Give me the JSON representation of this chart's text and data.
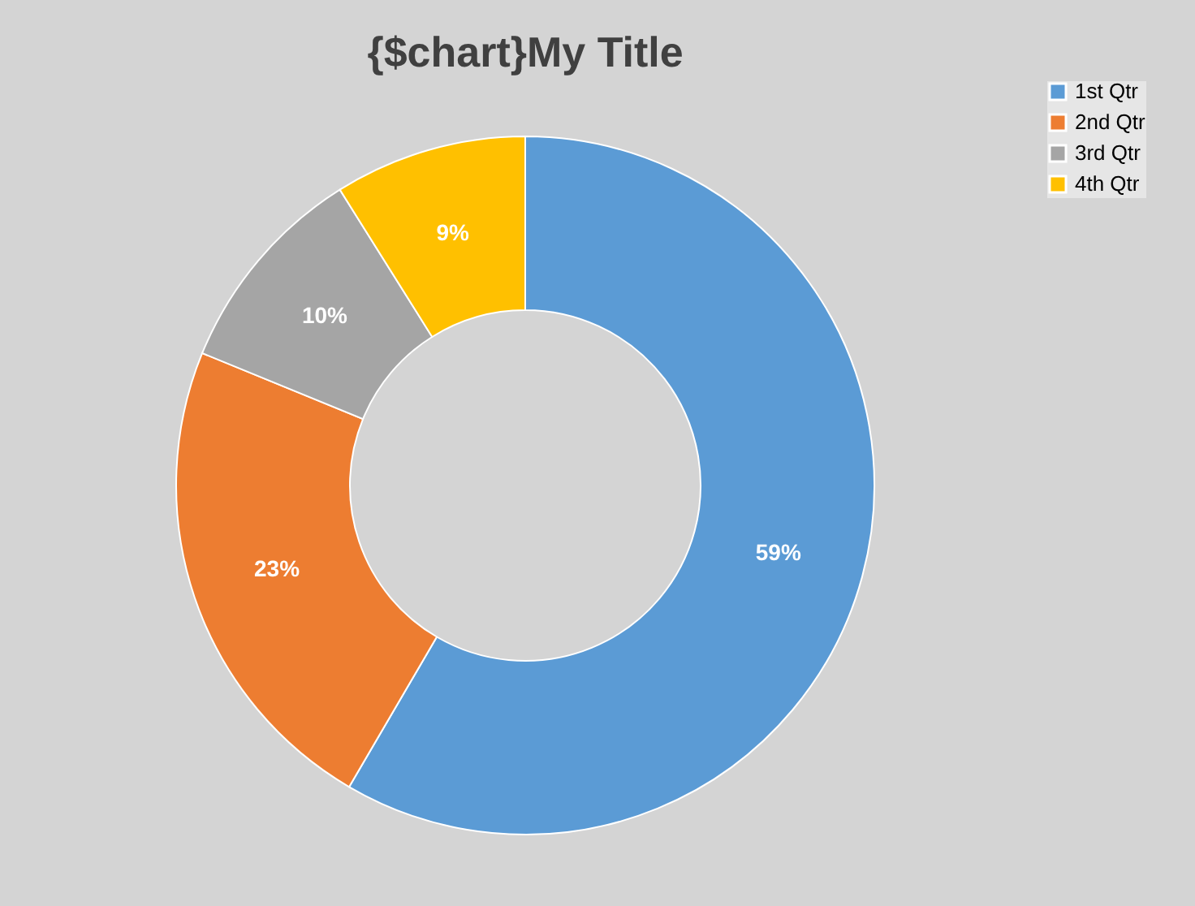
{
  "chart_data": {
    "type": "donut",
    "title": "{$chart}My Title",
    "categories": [
      "1st Qtr",
      "2nd Qtr",
      "3rd Qtr",
      "4th Qtr"
    ],
    "values": [
      59,
      23,
      10,
      9
    ],
    "colors": [
      "#5b9bd5",
      "#ed7d31",
      "#a5a5a5",
      "#ffc000"
    ],
    "value_labels": [
      "59%",
      "23%",
      "10%",
      "9%"
    ],
    "legend": "right"
  }
}
